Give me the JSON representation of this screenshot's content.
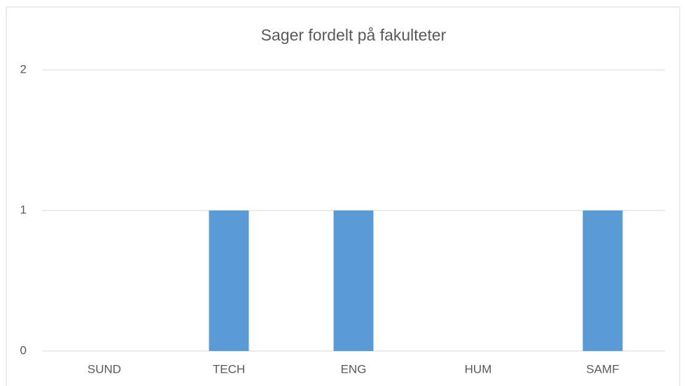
{
  "chart_data": {
    "type": "bar",
    "title": "Sager fordelt på fakulteter",
    "categories": [
      "SUND",
      "TECH",
      "ENG",
      "HUM",
      "SAMF"
    ],
    "values": [
      0,
      1,
      1,
      0,
      1
    ],
    "color": "#5b9bd5",
    "ylim": [
      0,
      2
    ],
    "yticks": [
      0,
      1,
      2
    ],
    "grid": true
  }
}
